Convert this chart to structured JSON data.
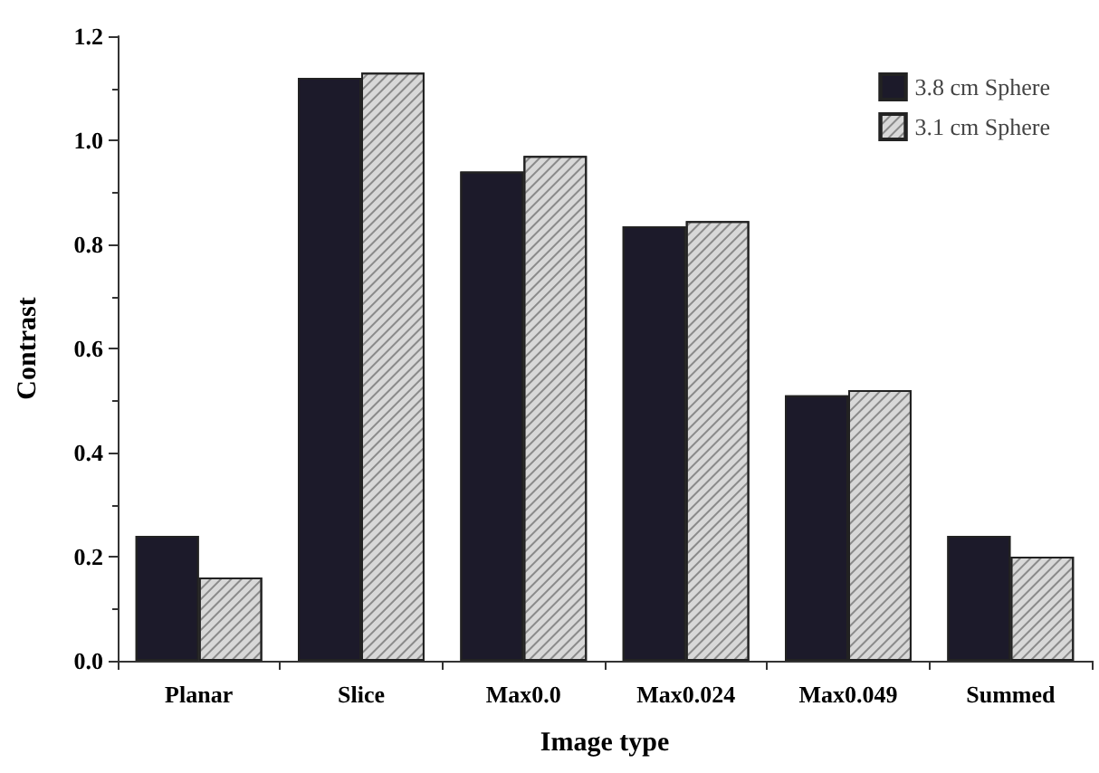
{
  "chart_data": {
    "type": "bar",
    "xlabel": "Image type",
    "ylabel": "Contrast",
    "categories": [
      "Planar",
      "Slice",
      "Max0.0",
      "Max0.024",
      "Max0.049",
      "Summed"
    ],
    "series": [
      {
        "name": "3.8 cm Sphere",
        "color": "#1c1a2a",
        "values": [
          0.24,
          1.12,
          0.94,
          0.835,
          0.51,
          0.24
        ]
      },
      {
        "name": "3.1 cm Sphere",
        "color": "#d8d8d8",
        "values": [
          0.16,
          1.13,
          0.97,
          0.845,
          0.52,
          0.2
        ]
      }
    ],
    "ylim": [
      0,
      1.2
    ],
    "yticks": [
      {
        "value": 0,
        "label": "0.0"
      },
      0.2,
      0.4,
      0.6,
      0.8,
      {
        "value": 1,
        "label": "1.0"
      },
      1.2
    ],
    "grid": false,
    "legend": "top right"
  }
}
